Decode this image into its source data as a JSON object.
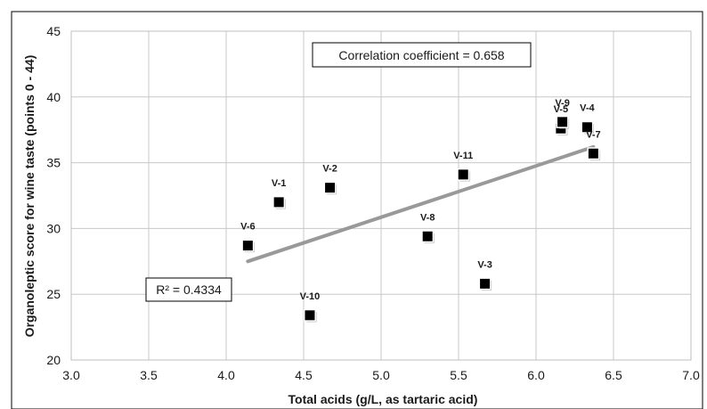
{
  "chart_data": {
    "type": "scatter",
    "xlabel": "Total acids (g/L, as tartaric acid)",
    "ylabel": "Organoleptic score for wine taste (points 0 - 44)",
    "xlim": [
      3.0,
      7.0
    ],
    "ylim": [
      20,
      45
    ],
    "xticks": [
      "3.0",
      "3.5",
      "4.0",
      "4.5",
      "5.0",
      "5.5",
      "6.0",
      "6.5",
      "7.0"
    ],
    "yticks": [
      "20",
      "25",
      "30",
      "35",
      "40",
      "45"
    ],
    "grid": true,
    "points": [
      {
        "label": "V-1",
        "x": 4.34,
        "y": 32.0
      },
      {
        "label": "V-2",
        "x": 4.67,
        "y": 33.1
      },
      {
        "label": "V-3",
        "x": 5.67,
        "y": 25.8
      },
      {
        "label": "V-4",
        "x": 6.33,
        "y": 37.7
      },
      {
        "label": "V-5",
        "x": 6.16,
        "y": 37.6
      },
      {
        "label": "V-6",
        "x": 4.14,
        "y": 28.7
      },
      {
        "label": "V-7",
        "x": 6.37,
        "y": 35.7
      },
      {
        "label": "V-8",
        "x": 5.3,
        "y": 29.4
      },
      {
        "label": "V-9",
        "x": 6.17,
        "y": 38.1
      },
      {
        "label": "V-10",
        "x": 4.54,
        "y": 23.4
      },
      {
        "label": "V-11",
        "x": 5.53,
        "y": 34.1
      }
    ],
    "trendline": {
      "x": [
        4.14,
        6.37
      ],
      "y": [
        27.5,
        36.2
      ],
      "color": "#999999"
    },
    "marker_color": "#000000",
    "annotations": {
      "correlation": "Correlation coefficient = 0.658",
      "r_squared": "R² = 0.4334"
    }
  }
}
